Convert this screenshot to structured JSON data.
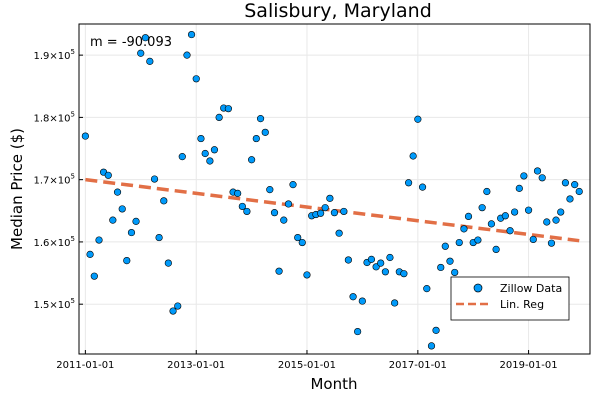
{
  "chart_data": {
    "type": "scatter",
    "title": "Salisbury, Maryland",
    "xlabel": "Month",
    "ylabel": "Median Price ($)",
    "annotation": "m = -90.093",
    "xlim": [
      "2010-11-20",
      "2020-02-10"
    ],
    "ylim": [
      142000,
      195000
    ],
    "x_ticks": [
      "2011-01-01",
      "2013-01-01",
      "2015-01-01",
      "2017-01-01",
      "2019-01-01"
    ],
    "y_ticks": [
      {
        "value": 150000,
        "mantissa": "1.5",
        "exp": "5"
      },
      {
        "value": 160000,
        "mantissa": "1.6",
        "exp": "5"
      },
      {
        "value": 170000,
        "mantissa": "1.7",
        "exp": "5"
      },
      {
        "value": 180000,
        "mantissa": "1.8",
        "exp": "5"
      },
      {
        "value": 190000,
        "mantissa": "1.9",
        "exp": "5"
      }
    ],
    "grid": true,
    "legend_position": "bottom-right",
    "colors": {
      "scatter": "#009AFA",
      "regression": "#E26F46",
      "grid": "#E8E8E8"
    },
    "series": [
      {
        "name": "Zillow Data",
        "kind": "scatter",
        "start": "2011-01-01",
        "values": [
          177000,
          158000,
          154500,
          160300,
          171200,
          170700,
          163500,
          168000,
          165300,
          157000,
          161500,
          163300,
          190300,
          192800,
          189000,
          170100,
          160700,
          166600,
          156600,
          148900,
          149700,
          173700,
          190000,
          193300,
          186200,
          176600,
          174200,
          173000,
          174800,
          180000,
          181500,
          181400,
          168000,
          167800,
          165700,
          164900,
          173200,
          176600,
          179800,
          177600,
          168400,
          164700,
          155300,
          163500,
          166100,
          169200,
          160700,
          159900,
          154700,
          164200,
          164400,
          164600,
          165500,
          167000,
          164700,
          161400,
          164900,
          157100,
          151200,
          145600,
          150500,
          156700,
          157200,
          156000,
          156600,
          155200,
          157500,
          150200,
          155200,
          154900,
          169500,
          173800,
          179700,
          168800,
          152500,
          143300,
          145800,
          155900,
          159300,
          156900,
          155100,
          159900,
          162100,
          164100,
          159900,
          160300,
          165500,
          168100,
          162900,
          158800,
          163800,
          164200,
          161800,
          164800,
          168600,
          170600,
          165100,
          160400,
          171400,
          170300,
          163200,
          159800,
          163500,
          164800,
          169500,
          166900,
          169200,
          168100
        ]
      },
      {
        "name": "Lin. Reg",
        "kind": "line",
        "x": [
          "2011-01-01",
          "2019-12-01"
        ],
        "y": [
          170000,
          160200
        ]
      }
    ]
  }
}
